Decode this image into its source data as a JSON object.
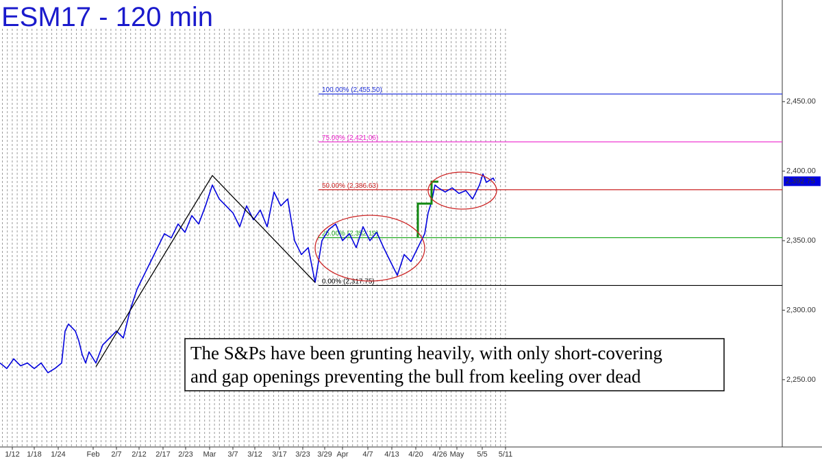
{
  "chart_data": {
    "type": "line",
    "title": "ESM17 - 120 min",
    "color": "#0000dd",
    "x": [
      0,
      1,
      2,
      3,
      4,
      5,
      6,
      7,
      8,
      9,
      9.5,
      10,
      11,
      11.5,
      12,
      12.5,
      13,
      14,
      15,
      16,
      17,
      18,
      19,
      20,
      21,
      22,
      23,
      24,
      25,
      26,
      27,
      28,
      29,
      30,
      31,
      32,
      33,
      34,
      35,
      36,
      37,
      38,
      39,
      40,
      41,
      42,
      43,
      44,
      45,
      46,
      47,
      48,
      49,
      50,
      51,
      52,
      53,
      54,
      55,
      56,
      57,
      58,
      59,
      60,
      61,
      62,
      62.5,
      63,
      63.5,
      64,
      65,
      66,
      67,
      68,
      69,
      70,
      70.5,
      71,
      72,
      72.2
    ],
    "values": [
      2262,
      2258,
      2265,
      2260,
      2262,
      2258,
      2262,
      2255,
      2258,
      2262,
      2285,
      2290,
      2285,
      2278,
      2268,
      2262,
      2270,
      2262,
      2275,
      2280,
      2285,
      2280,
      2300,
      2315,
      2325,
      2335,
      2345,
      2355,
      2352,
      2362,
      2356,
      2368,
      2362,
      2375,
      2390,
      2380,
      2375,
      2370,
      2360,
      2375,
      2365,
      2372,
      2360,
      2385,
      2375,
      2380,
      2350,
      2340,
      2345,
      2320,
      2350,
      2358,
      2362,
      2350,
      2355,
      2345,
      2360,
      2350,
      2356,
      2345,
      2335,
      2325,
      2340,
      2335,
      2345,
      2355,
      2370,
      2378,
      2390,
      2388,
      2385,
      2388,
      2384,
      2386,
      2380,
      2390,
      2398,
      2392,
      2395,
      2393
    ],
    "xlim": [
      0,
      114.2
    ],
    "xticks": [
      {
        "value": 1.8,
        "label": "1/12"
      },
      {
        "value": 5.0,
        "label": "1/18"
      },
      {
        "value": 8.5,
        "label": "1/24"
      },
      {
        "value": 13.6,
        "label": "Feb"
      },
      {
        "value": 17.0,
        "label": "2/7"
      },
      {
        "value": 20.3,
        "label": "2/12"
      },
      {
        "value": 23.8,
        "label": "2/17"
      },
      {
        "value": 27.1,
        "label": "2/23"
      },
      {
        "value": 30.6,
        "label": "Mar"
      },
      {
        "value": 34.0,
        "label": "3/7"
      },
      {
        "value": 37.2,
        "label": "3/12"
      },
      {
        "value": 40.8,
        "label": "3/17"
      },
      {
        "value": 44.2,
        "label": "3/23"
      },
      {
        "value": 47.4,
        "label": "3/29"
      },
      {
        "value": 50.0,
        "label": "Apr"
      },
      {
        "value": 53.7,
        "label": "4/7"
      },
      {
        "value": 57.2,
        "label": "4/13"
      },
      {
        "value": 60.7,
        "label": "4/20"
      },
      {
        "value": 64.2,
        "label": "4/26"
      },
      {
        "value": 66.7,
        "label": "May"
      },
      {
        "value": 70.4,
        "label": "5/5"
      },
      {
        "value": 73.8,
        "label": "5/11"
      }
    ],
    "ylim": [
      2201.6,
      2523.1
    ],
    "yticks": [
      {
        "value": 2250,
        "label": "2,250.00"
      },
      {
        "value": 2300,
        "label": "2,300.00"
      },
      {
        "value": 2350,
        "label": "2,350.00"
      },
      {
        "value": 2400,
        "label": "2,400.00"
      },
      {
        "value": 2450,
        "label": "2,450.00"
      }
    ],
    "fib_levels": [
      {
        "value": 2455.5,
        "label": "100.00% (2,455.50)",
        "color": "#2233dd"
      },
      {
        "value": 2421.06,
        "label": "75.00% (2,421.06)",
        "color": "#ee22cc"
      },
      {
        "value": 2386.63,
        "label": "50.00% (2,386.63)",
        "color": "#cc2222"
      },
      {
        "value": 2352.19,
        "label": "25.00% (2,352.19)",
        "color": "#22aa22"
      },
      {
        "value": 2317.75,
        "label": "0.00% (2,317.75)",
        "color": "#000000"
      }
    ],
    "last_price": {
      "value": 2392.75,
      "label": "2,392.75"
    },
    "annotation": [
      "The S&Ps have been grunting heavily, with only short-covering",
      "and gap openings preventing the bull from keeling over dead"
    ]
  }
}
